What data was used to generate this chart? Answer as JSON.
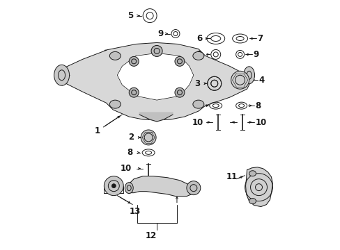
{
  "bg_color": "#ffffff",
  "line_color": "#1a1a1a",
  "fig_width": 4.89,
  "fig_height": 3.6,
  "dpi": 100,
  "label_fontsize": 8.5,
  "label_bold": true
}
